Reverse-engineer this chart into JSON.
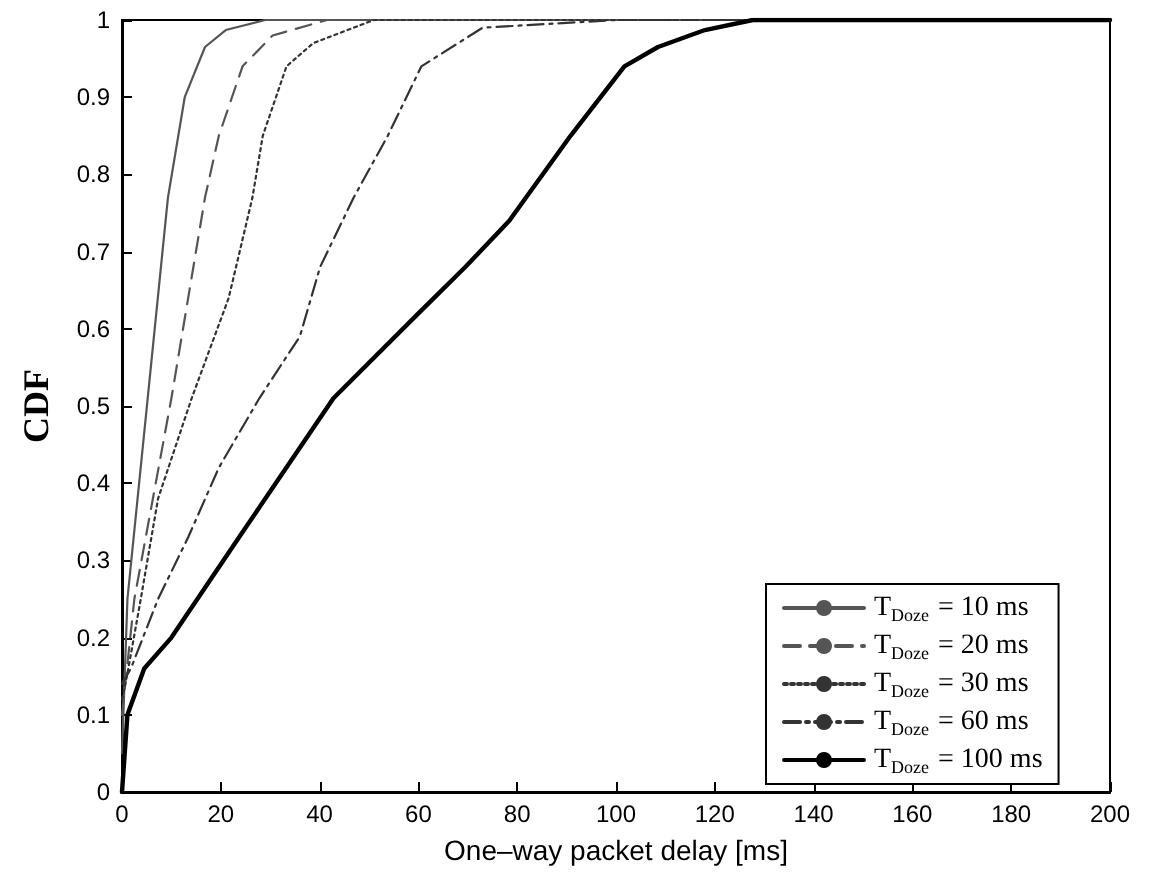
{
  "chart_data": {
    "type": "line",
    "xlabel": "One–way packet delay [ms]",
    "ylabel": "CDF",
    "xlim": [
      0,
      200
    ],
    "xticks": [
      0,
      20,
      40,
      60,
      80,
      100,
      120,
      140,
      160,
      180,
      200
    ],
    "ylim": [
      0,
      1
    ],
    "yticks": [
      0,
      0.1,
      0.2,
      0.3,
      0.4,
      0.5,
      0.6,
      0.7,
      0.8,
      0.9,
      1
    ],
    "grid": false,
    "legend": "bottom right",
    "marker": "none",
    "series": [
      {
        "name": "T$_{Doze}$ = 10 ms",
        "color": "#555555",
        "line_style": "solid",
        "x": [
          0,
          1.1,
          5.2,
          9.3,
          12.7,
          16.8,
          21,
          29,
          200
        ],
        "values": [
          0.05,
          0.25,
          0.51,
          0.77,
          0.9,
          0.965,
          0.987,
          1,
          1
        ]
      },
      {
        "name": "T$_{Doze}$ = 20 ms",
        "color": "#555555",
        "line_style": "dashed",
        "x": [
          0,
          2.5,
          10,
          16.8,
          19.6,
          24.4,
          30.5,
          41.5,
          200
        ],
        "values": [
          0.1,
          0.25,
          0.51,
          0.77,
          0.85,
          0.94,
          0.98,
          1,
          1
        ]
      },
      {
        "name": "T$_{Doze}$ = 30 ms",
        "color": "#333333",
        "line_style": "dotted",
        "x": [
          0,
          1,
          3.8,
          7.3,
          14.1,
          21.6,
          26.4,
          28.5,
          33.3,
          38.7,
          51,
          200
        ],
        "values": [
          0.12,
          0.15,
          0.25,
          0.38,
          0.51,
          0.64,
          0.77,
          0.85,
          0.94,
          0.97,
          1,
          1
        ]
      },
      {
        "name": "T$_{Doze}$ = 60 ms",
        "color": "#333333",
        "line_style": "dashdot",
        "x": [
          0,
          1.8,
          7.3,
          13.4,
          19.6,
          27.8,
          36,
          40.1,
          46.9,
          53.8,
          60.6,
          73,
          100,
          200
        ],
        "values": [
          0.14,
          0.16,
          0.25,
          0.33,
          0.42,
          0.51,
          0.59,
          0.68,
          0.77,
          0.85,
          0.94,
          0.99,
          1,
          1
        ]
      },
      {
        "name": "T$_{Doze}$ = 100 ms",
        "color": "#000000",
        "line_style": "solid",
        "x": [
          0,
          1.1,
          4.5,
          10,
          23.7,
          42.8,
          60,
          69.5,
          78.4,
          90.8,
          101.7,
          108.5,
          118,
          127.7,
          200
        ],
        "values": [
          0,
          0.1,
          0.16,
          0.2,
          0.33,
          0.51,
          0.62,
          0.68,
          0.74,
          0.85,
          0.94,
          0.965,
          0.987,
          1,
          1
        ]
      }
    ]
  }
}
